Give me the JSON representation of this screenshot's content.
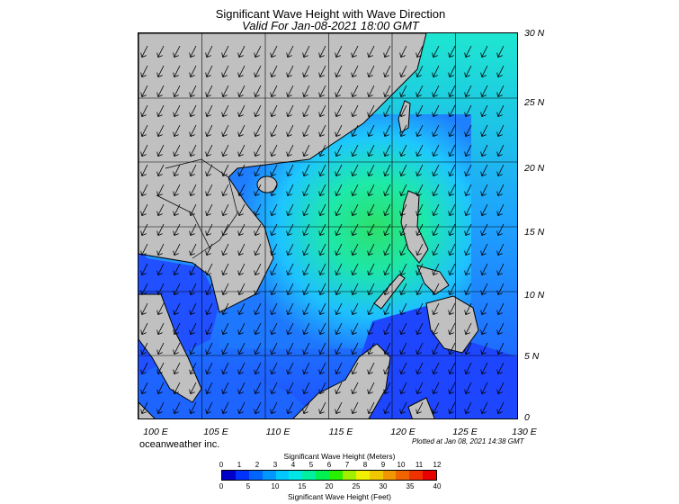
{
  "title": "Significant Wave Height with Wave Direction",
  "subtitle": "Valid For Jan-08-2021 18:00 GMT",
  "credit": "oceanweather inc.",
  "plotted": "Plotted at Jan 08, 2021 14:38 GMT",
  "lat_labels": [
    "30 N",
    "25 N",
    "20 N",
    "15 N",
    "10 N",
    "5 N",
    "0"
  ],
  "lon_labels": [
    "100 E",
    "105 E",
    "110 E",
    "115 E",
    "120 E",
    "125 E",
    "130 E"
  ],
  "scale": {
    "meters_title": "Significant Wave Height (Meters)",
    "feet_title": "Significant Wave Height (Feet)",
    "meters_ticks": [
      "0",
      "1",
      "2",
      "3",
      "4",
      "5",
      "6",
      "7",
      "8",
      "9",
      "10",
      "11",
      "12"
    ],
    "feet_ticks": [
      "0",
      "5",
      "10",
      "15",
      "20",
      "25",
      "30",
      "35",
      "40"
    ],
    "colors": [
      "#0000c8",
      "#0032ff",
      "#0064ff",
      "#0096ff",
      "#00c8ff",
      "#00e6e6",
      "#00f0a0",
      "#00f050",
      "#28f000",
      "#a0f000",
      "#f0f000",
      "#f0c800",
      "#f09600",
      "#f06400",
      "#f03200",
      "#e60000"
    ]
  },
  "map": {
    "land_color": "#c0c0c0",
    "ocean_dark": "#1a3cff",
    "ocean_mid": "#1ec8ff",
    "ocean_green": "#1ef0a0"
  }
}
